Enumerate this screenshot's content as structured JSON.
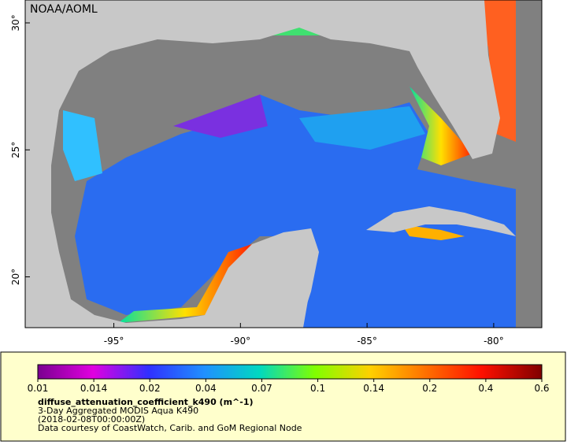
{
  "map": {
    "credit": "NOAA/AOML",
    "xlim": [
      -98.5,
      -78.1
    ],
    "ylim": [
      18.0,
      30.9
    ],
    "xticks": [
      {
        "value": -95,
        "label": "-95°"
      },
      {
        "value": -90,
        "label": "-90°"
      },
      {
        "value": -85,
        "label": "-85°"
      },
      {
        "value": -80,
        "label": "-80°"
      }
    ],
    "yticks": [
      {
        "value": 20,
        "label": "20°"
      },
      {
        "value": 25,
        "label": "25°"
      },
      {
        "value": 30,
        "label": "30°"
      }
    ]
  },
  "colorbar": {
    "ticks": [
      0.01,
      0.014,
      0.02,
      0.04,
      0.07,
      0.1,
      0.14,
      0.2,
      0.4,
      0.6
    ]
  },
  "caption": {
    "variable": "diffuse_attenuation_coefficient_k490 (m^-1)",
    "dataset": "3-Day Aggregated MODIS Aqua K490",
    "time": "(2018-02-08T00:00:00Z)",
    "source": "Data courtesy of CoastWatch, Carib. and GoM Regional Node"
  }
}
